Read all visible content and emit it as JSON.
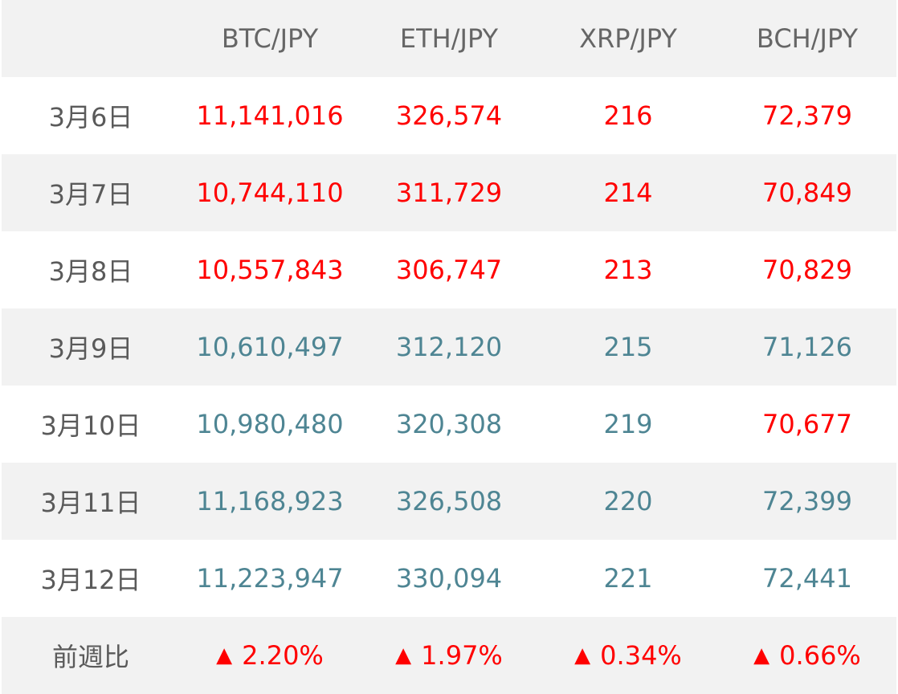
{
  "header": {
    "corner": "",
    "columns": [
      "BTC/JPY",
      "ETH/JPY",
      "XRP/JPY",
      "BCH/JPY"
    ]
  },
  "rows": [
    {
      "date": "3月6日",
      "cells": [
        {
          "value": "11,141,016",
          "trend": "up"
        },
        {
          "value": "326,574",
          "trend": "up"
        },
        {
          "value": "216",
          "trend": "up"
        },
        {
          "value": "72,379",
          "trend": "up"
        }
      ]
    },
    {
      "date": "3月7日",
      "cells": [
        {
          "value": "10,744,110",
          "trend": "up"
        },
        {
          "value": "311,729",
          "trend": "up"
        },
        {
          "value": "214",
          "trend": "up"
        },
        {
          "value": "70,849",
          "trend": "up"
        }
      ]
    },
    {
      "date": "3月8日",
      "cells": [
        {
          "value": "10,557,843",
          "trend": "up"
        },
        {
          "value": "306,747",
          "trend": "up"
        },
        {
          "value": "213",
          "trend": "up"
        },
        {
          "value": "70,829",
          "trend": "up"
        }
      ]
    },
    {
      "date": "3月9日",
      "cells": [
        {
          "value": "10,610,497",
          "trend": "down"
        },
        {
          "value": "312,120",
          "trend": "down"
        },
        {
          "value": "215",
          "trend": "down"
        },
        {
          "value": "71,126",
          "trend": "down"
        }
      ]
    },
    {
      "date": "3月10日",
      "cells": [
        {
          "value": "10,980,480",
          "trend": "down"
        },
        {
          "value": "320,308",
          "trend": "down"
        },
        {
          "value": "219",
          "trend": "down"
        },
        {
          "value": "70,677",
          "trend": "up"
        }
      ]
    },
    {
      "date": "3月11日",
      "cells": [
        {
          "value": "11,168,923",
          "trend": "down"
        },
        {
          "value": "326,508",
          "trend": "down"
        },
        {
          "value": "220",
          "trend": "down"
        },
        {
          "value": "72,399",
          "trend": "down"
        }
      ]
    },
    {
      "date": "3月12日",
      "cells": [
        {
          "value": "11,223,947",
          "trend": "down"
        },
        {
          "value": "330,094",
          "trend": "down"
        },
        {
          "value": "221",
          "trend": "down"
        },
        {
          "value": "72,441",
          "trend": "down"
        }
      ]
    }
  ],
  "summary": {
    "label": "前週比",
    "triangle_icon": "▲",
    "values": [
      "2.20%",
      "1.97%",
      "0.34%",
      "0.66%"
    ]
  },
  "colors": {
    "up": "#ff0000",
    "down": "#4e8593",
    "header_text": "#666666",
    "alt_row_bg": "#f2f2f2"
  }
}
